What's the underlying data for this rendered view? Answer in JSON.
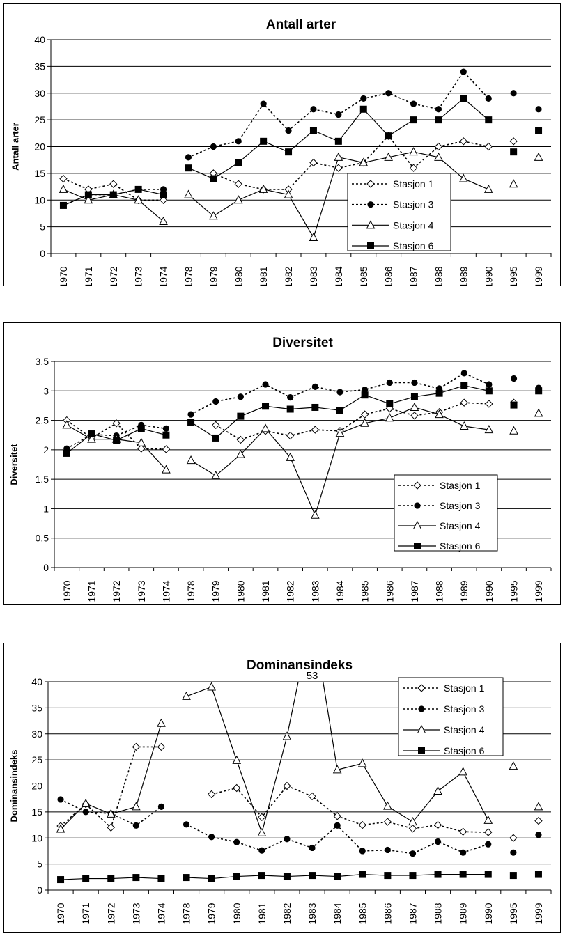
{
  "chart_data": [
    {
      "type": "line",
      "title": "Antall arter",
      "ylabel": "Antall arter",
      "ylim": [
        0,
        40
      ],
      "yticks": [
        0,
        5,
        10,
        15,
        20,
        25,
        30,
        35,
        40
      ],
      "categories": [
        "1970",
        "1971",
        "1972",
        "1973",
        "1974",
        "1978",
        "1979",
        "1980",
        "1981",
        "1982",
        "1983",
        "1984",
        "1985",
        "1986",
        "1987",
        "1988",
        "1989",
        "1990",
        "1995",
        "1999"
      ],
      "legend_position": "bottom-right",
      "series": [
        {
          "name": "Stasjon 1",
          "style": "dotted",
          "marker": "diamond-open",
          "values": [
            14,
            12,
            13,
            10,
            10,
            null,
            15,
            13,
            12,
            12,
            17,
            16,
            17,
            22,
            16,
            20,
            21,
            20,
            21,
            null
          ]
        },
        {
          "name": "Stasjon 3",
          "style": "dotted",
          "marker": "circle-filled",
          "values": [
            9,
            11,
            11,
            12,
            12,
            18,
            20,
            21,
            28,
            23,
            27,
            26,
            29,
            30,
            28,
            27,
            34,
            29,
            30,
            27
          ]
        },
        {
          "name": "Stasjon 4",
          "style": "solid",
          "marker": "triangle-open",
          "values": [
            12,
            10,
            11,
            10,
            6,
            11,
            7,
            10,
            12,
            11,
            3,
            18,
            17,
            18,
            19,
            18,
            14,
            12,
            13,
            18
          ]
        },
        {
          "name": "Stasjon 6",
          "style": "solid",
          "marker": "square-filled",
          "values": [
            9,
            11,
            11,
            12,
            11,
            16,
            14,
            17,
            21,
            19,
            23,
            21,
            27,
            22,
            25,
            25,
            29,
            25,
            19,
            23
          ]
        }
      ]
    },
    {
      "type": "line",
      "title": "Diversitet",
      "ylabel": "Diversitet",
      "ylim": [
        0,
        3.5
      ],
      "yticks": [
        0,
        0.5,
        1,
        1.5,
        2,
        2.5,
        3,
        3.5
      ],
      "categories": [
        "1970",
        "1971",
        "1972",
        "1973",
        "1974",
        "1978",
        "1979",
        "1980",
        "1981",
        "1982",
        "1983",
        "1984",
        "1985",
        "1986",
        "1987",
        "1988",
        "1989",
        "1990",
        "1995",
        "1999"
      ],
      "legend_position": "bottom-right",
      "series": [
        {
          "name": "Stasjon 1",
          "style": "dotted",
          "marker": "diamond-open",
          "values": [
            2.5,
            2.2,
            2.45,
            2.02,
            2.01,
            null,
            2.42,
            2.17,
            2.32,
            2.24,
            2.34,
            2.32,
            2.6,
            2.7,
            2.58,
            2.64,
            2.8,
            2.78,
            2.8,
            null
          ]
        },
        {
          "name": "Stasjon 3",
          "style": "dotted",
          "marker": "circle-filled",
          "values": [
            2.02,
            2.26,
            2.24,
            2.42,
            2.36,
            2.6,
            2.82,
            2.9,
            3.11,
            2.89,
            3.07,
            2.98,
            3.02,
            3.14,
            3.14,
            3.04,
            3.3,
            3.11,
            3.21,
            3.05
          ]
        },
        {
          "name": "Stasjon 4",
          "style": "solid",
          "marker": "triangle-open",
          "values": [
            2.42,
            2.18,
            2.18,
            2.12,
            1.66,
            1.82,
            1.56,
            1.92,
            2.36,
            1.87,
            0.89,
            2.28,
            2.45,
            2.54,
            2.72,
            2.6,
            2.4,
            2.34,
            2.32,
            2.62
          ]
        },
        {
          "name": "Stasjon 6",
          "style": "solid",
          "marker": "square-filled",
          "values": [
            1.94,
            2.27,
            2.16,
            2.36,
            2.25,
            2.47,
            2.2,
            2.57,
            2.74,
            2.69,
            2.72,
            2.67,
            2.93,
            2.78,
            2.9,
            2.96,
            3.09,
            3.0,
            2.76,
            3.0
          ]
        }
      ]
    },
    {
      "type": "line",
      "title": "Dominansindeks",
      "ylabel": "Dominansindeks",
      "ylim": [
        0,
        40
      ],
      "yticks": [
        0,
        5,
        10,
        15,
        20,
        25,
        30,
        35,
        40
      ],
      "categories": [
        "1970",
        "1971",
        "1972",
        "1973",
        "1974",
        "1978",
        "1979",
        "1980",
        "1981",
        "1982",
        "1983",
        "1984",
        "1985",
        "1986",
        "1987",
        "1988",
        "1989",
        "1990",
        "1995",
        "1999"
      ],
      "legend_position": "top-right",
      "annotations": [
        {
          "text": "53",
          "category": "1983"
        }
      ],
      "series": [
        {
          "name": "Stasjon 1",
          "style": "dotted",
          "marker": "diamond-open",
          "values": [
            12.3,
            16.5,
            12,
            27.5,
            27.5,
            null,
            18.4,
            19.6,
            14,
            20,
            18,
            14.2,
            12.5,
            13.1,
            11.8,
            12.5,
            11.2,
            11.1,
            10,
            13.3
          ]
        },
        {
          "name": "Stasjon 3",
          "style": "dotted",
          "marker": "circle-filled",
          "values": [
            17.4,
            15,
            14.7,
            12.4,
            16,
            12.6,
            10.2,
            9.2,
            7.6,
            9.8,
            8.1,
            12.4,
            7.5,
            7.7,
            7,
            9.3,
            7.2,
            8.8,
            7.2,
            10.6
          ]
        },
        {
          "name": "Stasjon 4",
          "style": "solid",
          "marker": "triangle-open",
          "values": [
            11.7,
            16.6,
            14.6,
            16,
            32,
            37.2,
            39,
            24.9,
            11,
            29.5,
            53,
            23.1,
            24.3,
            16.1,
            13.1,
            19,
            22.7,
            13.4,
            23.8,
            16
          ]
        },
        {
          "name": "Stasjon 6",
          "style": "solid",
          "marker": "square-filled",
          "values": [
            2,
            2.2,
            2.2,
            2.4,
            2.2,
            2.4,
            2.2,
            2.6,
            2.8,
            2.6,
            2.8,
            2.6,
            3,
            2.8,
            2.8,
            3,
            3,
            3,
            2.8,
            3
          ]
        }
      ]
    }
  ]
}
